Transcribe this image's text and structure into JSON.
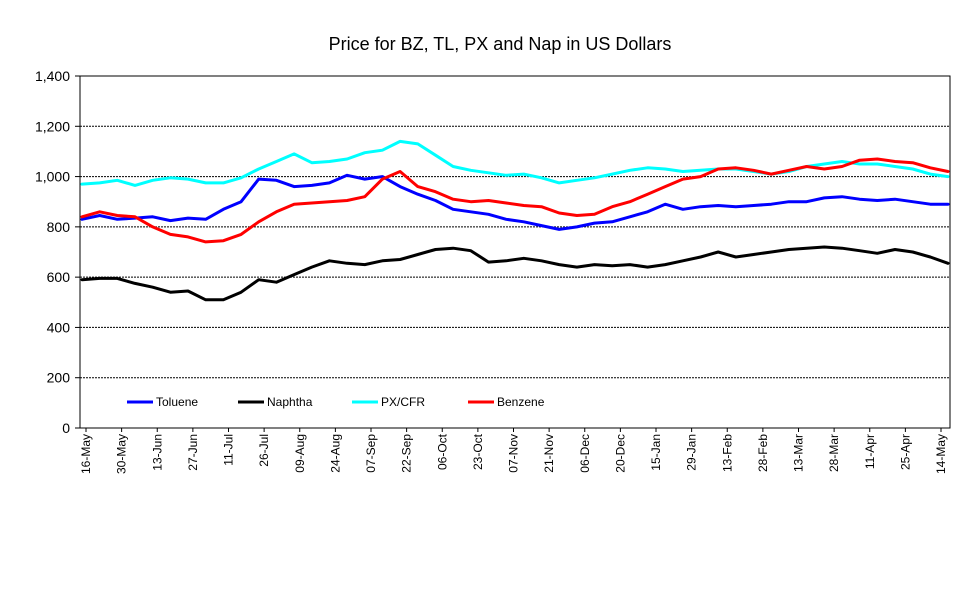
{
  "chart_data": {
    "type": "line",
    "title": "Price for BZ, TL, PX and Nap in US Dollars",
    "xlabel": "",
    "ylabel": "",
    "ylim": [
      0,
      1400
    ],
    "yticks": [
      0,
      200,
      400,
      600,
      800,
      1000,
      1200,
      1400
    ],
    "ytick_labels": [
      "0",
      "200",
      "400",
      "600",
      "800",
      "1,000",
      "1,200",
      "1,400"
    ],
    "x_tick_labels": [
      "16-May",
      "30-May",
      "13-Jun",
      "27-Jun",
      "11-Jul",
      "26-Jul",
      "09-Aug",
      "24-Aug",
      "07-Sep",
      "22-Sep",
      "06-Oct",
      "23-Oct",
      "07-Nov",
      "21-Nov",
      "06-Dec",
      "20-Dec",
      "15-Jan",
      "29-Jan",
      "13-Feb",
      "28-Feb",
      "13-Mar",
      "28-Mar",
      "11-Apr",
      "25-Apr",
      "14-May"
    ],
    "grid": "horizontal",
    "legend_position": "bottom-left inside plot",
    "series": [
      {
        "name": "Toluene",
        "color": "#0000ff",
        "values": [
          830,
          845,
          830,
          835,
          840,
          825,
          835,
          830,
          870,
          900,
          990,
          985,
          960,
          965,
          975,
          1005,
          990,
          1000,
          960,
          930,
          905,
          870,
          860,
          850,
          830,
          820,
          805,
          790,
          800,
          815,
          820,
          840,
          860,
          890,
          870,
          880,
          885,
          880,
          885,
          890,
          900,
          900,
          915,
          920,
          910,
          905,
          910,
          900,
          890,
          890
        ]
      },
      {
        "name": "Naphtha",
        "color": "#000000",
        "values": [
          590,
          595,
          595,
          575,
          560,
          540,
          545,
          510,
          510,
          540,
          590,
          580,
          610,
          640,
          665,
          655,
          650,
          665,
          670,
          690,
          710,
          715,
          705,
          660,
          665,
          675,
          665,
          650,
          640,
          650,
          645,
          650,
          640,
          650,
          665,
          680,
          700,
          680,
          690,
          700,
          710,
          715,
          720,
          715,
          705,
          695,
          710,
          700,
          680,
          655
        ]
      },
      {
        "name": "PX/CFR",
        "color": "#00ffff",
        "values": [
          970,
          975,
          985,
          965,
          985,
          995,
          990,
          975,
          975,
          995,
          1030,
          1060,
          1090,
          1055,
          1060,
          1070,
          1095,
          1105,
          1140,
          1130,
          1085,
          1040,
          1025,
          1015,
          1005,
          1010,
          995,
          975,
          985,
          995,
          1010,
          1025,
          1035,
          1030,
          1020,
          1025,
          1030,
          1030,
          1020,
          1010,
          1020,
          1040,
          1050,
          1060,
          1050,
          1050,
          1040,
          1030,
          1010,
          1000
        ]
      },
      {
        "name": "Benzene",
        "color": "#ff0000",
        "values": [
          840,
          860,
          845,
          840,
          800,
          770,
          760,
          740,
          745,
          770,
          820,
          860,
          890,
          895,
          900,
          905,
          920,
          990,
          1020,
          960,
          940,
          910,
          900,
          905,
          895,
          885,
          880,
          855,
          845,
          850,
          880,
          900,
          930,
          960,
          990,
          1000,
          1030,
          1035,
          1025,
          1010,
          1025,
          1040,
          1030,
          1040,
          1065,
          1070,
          1060,
          1055,
          1035,
          1020
        ]
      }
    ]
  }
}
